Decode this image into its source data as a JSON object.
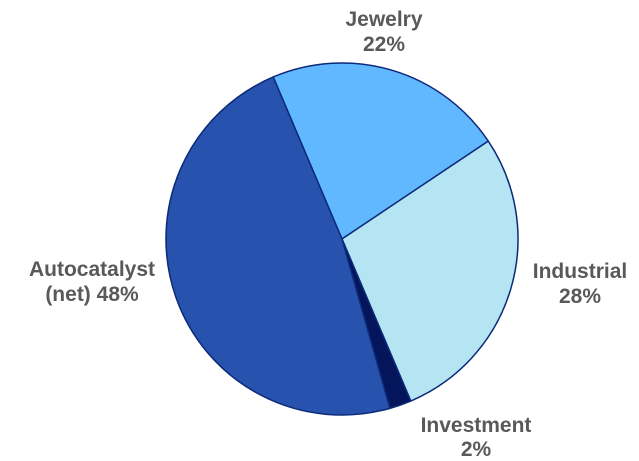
{
  "chart_data": {
    "type": "pie",
    "title": "",
    "start_angle_deg": -23,
    "direction": "clockwise",
    "slices": [
      {
        "name": "Jewelry",
        "value": 22,
        "value_label": "22%",
        "label_lines": [
          "Jewelry",
          "22%"
        ],
        "color": "#62b8ff"
      },
      {
        "name": "Industrial",
        "value": 28,
        "value_label": "28%",
        "label_lines": [
          "Industrial",
          "28%"
        ],
        "color": "#b5e5f3"
      },
      {
        "name": "Investment",
        "value": 2,
        "value_label": "2%",
        "label_lines": [
          "Investment",
          "2%"
        ],
        "color": "#05155c"
      },
      {
        "name": "Autocatalyst (net)",
        "value": 48,
        "value_label": "48%",
        "label_lines": [
          "Autocatalyst",
          "(net) 48%"
        ],
        "color": "#2752ad"
      }
    ],
    "stroke_color": "#0b2a7a",
    "legend": "none",
    "labels": "outside"
  }
}
